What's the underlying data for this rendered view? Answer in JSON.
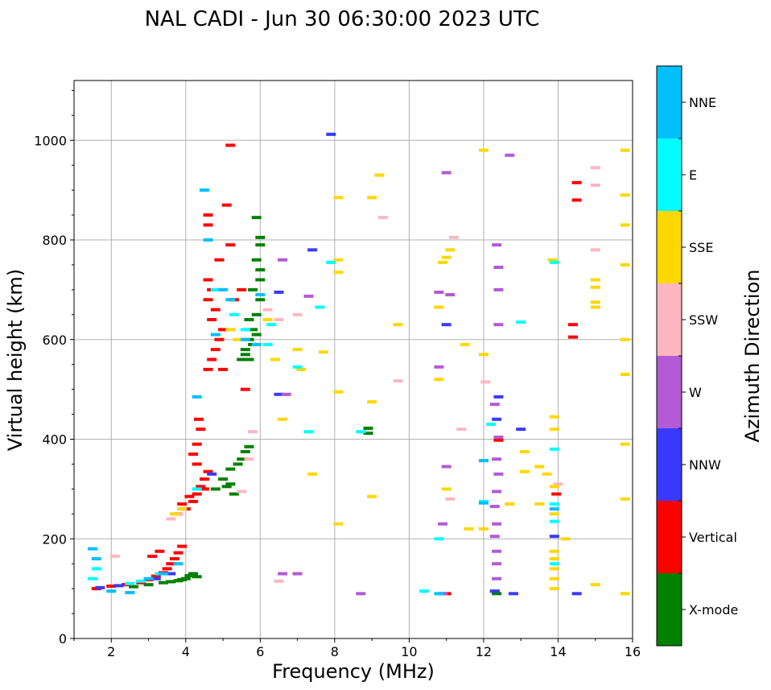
{
  "chart_data": {
    "type": "scatter",
    "title": "NAL CADI - Jun 30 06:30:00 2023 UTC",
    "xlabel": "Frequency (MHz)",
    "ylabel": "Virtual height (km)",
    "xlim": [
      1,
      16
    ],
    "ylim": [
      0,
      1120
    ],
    "xticks": [
      2,
      4,
      6,
      8,
      10,
      12,
      14,
      16
    ],
    "yticks": [
      0,
      200,
      400,
      600,
      800,
      1000
    ],
    "grid": true,
    "colorbar": {
      "label": "Azimuth Direction",
      "categories": [
        {
          "name": "X-mode",
          "color": "#008000"
        },
        {
          "name": "Vertical",
          "color": "#ff0000"
        },
        {
          "name": "NNW",
          "color": "#3a3aff"
        },
        {
          "name": "W",
          "color": "#b35ad6"
        },
        {
          "name": "SSW",
          "color": "#ffb6c1"
        },
        {
          "name": "SSE",
          "color": "#ffd700"
        },
        {
          "name": "E",
          "color": "#00ffff"
        },
        {
          "name": "NNE",
          "color": "#00bfff"
        }
      ]
    },
    "series": [
      {
        "name": "X-mode",
        "points": [
          [
            2.6,
            104
          ],
          [
            3.0,
            108
          ],
          [
            3.4,
            112
          ],
          [
            3.6,
            114
          ],
          [
            3.8,
            116
          ],
          [
            4.0,
            120
          ],
          [
            4.1,
            126
          ],
          [
            4.2,
            130
          ],
          [
            4.3,
            124
          ],
          [
            3.9,
            118
          ],
          [
            4.8,
            300
          ],
          [
            5.0,
            320
          ],
          [
            5.2,
            340
          ],
          [
            5.4,
            350
          ],
          [
            5.5,
            360
          ],
          [
            5.6,
            375
          ],
          [
            5.3,
            290
          ],
          [
            5.1,
            305
          ],
          [
            5.7,
            385
          ],
          [
            5.2,
            310
          ],
          [
            5.5,
            560
          ],
          [
            5.6,
            580
          ],
          [
            5.7,
            600
          ],
          [
            5.8,
            620
          ],
          [
            5.9,
            650
          ],
          [
            6.0,
            680
          ],
          [
            5.8,
            700
          ],
          [
            6.0,
            720
          ],
          [
            5.7,
            640
          ],
          [
            5.6,
            570
          ],
          [
            5.9,
            760
          ],
          [
            6.0,
            790
          ],
          [
            5.9,
            845
          ],
          [
            6.0,
            805
          ],
          [
            5.8,
            590
          ],
          [
            5.9,
            610
          ],
          [
            5.7,
            560
          ],
          [
            6.0,
            740
          ],
          [
            8.9,
            412
          ],
          [
            8.9,
            422
          ],
          [
            12.35,
            90
          ],
          [
            12.3,
            95
          ]
        ]
      },
      {
        "name": "Vertical",
        "points": [
          [
            1.6,
            100
          ],
          [
            2.0,
            105
          ],
          [
            2.4,
            108
          ],
          [
            2.8,
            112
          ],
          [
            3.0,
            118
          ],
          [
            3.2,
            125
          ],
          [
            3.4,
            132
          ],
          [
            3.5,
            140
          ],
          [
            3.6,
            150
          ],
          [
            3.7,
            160
          ],
          [
            3.8,
            172
          ],
          [
            3.9,
            185
          ],
          [
            3.3,
            175
          ],
          [
            3.1,
            165
          ],
          [
            3.8,
            250
          ],
          [
            4.0,
            260
          ],
          [
            4.2,
            275
          ],
          [
            4.3,
            290
          ],
          [
            4.4,
            305
          ],
          [
            4.5,
            320
          ],
          [
            4.6,
            335
          ],
          [
            4.3,
            350
          ],
          [
            4.2,
            370
          ],
          [
            4.3,
            390
          ],
          [
            4.4,
            420
          ],
          [
            4.35,
            440
          ],
          [
            3.9,
            270
          ],
          [
            4.1,
            285
          ],
          [
            4.5,
            300
          ],
          [
            4.6,
            540
          ],
          [
            4.7,
            560
          ],
          [
            4.8,
            580
          ],
          [
            4.9,
            600
          ],
          [
            5.0,
            620
          ],
          [
            4.7,
            640
          ],
          [
            4.8,
            660
          ],
          [
            4.6,
            680
          ],
          [
            4.7,
            700
          ],
          [
            4.6,
            720
          ],
          [
            4.9,
            760
          ],
          [
            5.2,
            790
          ],
          [
            4.6,
            830
          ],
          [
            4.6,
            850
          ],
          [
            5.1,
            870
          ],
          [
            5.2,
            990
          ],
          [
            5.5,
            700
          ],
          [
            5.3,
            680
          ],
          [
            5.0,
            540
          ],
          [
            5.6,
            500
          ],
          [
            14.4,
            605
          ],
          [
            14.4,
            630
          ],
          [
            14.5,
            880
          ],
          [
            14.5,
            915
          ],
          [
            13.95,
            290
          ],
          [
            12.4,
            398
          ],
          [
            11.0,
            90
          ]
        ]
      },
      {
        "name": "NNW",
        "points": [
          [
            1.7,
            102
          ],
          [
            2.2,
            106
          ],
          [
            3.2,
            120
          ],
          [
            3.6,
            130
          ],
          [
            4.7,
            330
          ],
          [
            6.5,
            490
          ],
          [
            6.5,
            695
          ],
          [
            7.4,
            780
          ],
          [
            7.9,
            1012
          ],
          [
            11.0,
            630
          ],
          [
            12.4,
            485
          ],
          [
            12.35,
            440
          ],
          [
            13.0,
            420
          ],
          [
            12.3,
            95
          ],
          [
            12.8,
            90
          ],
          [
            13.9,
            205
          ],
          [
            14.5,
            90
          ]
        ]
      },
      {
        "name": "W",
        "points": [
          [
            6.6,
            130
          ],
          [
            7.0,
            130
          ],
          [
            6.6,
            760
          ],
          [
            6.7,
            490
          ],
          [
            7.3,
            687
          ],
          [
            8.7,
            90
          ],
          [
            10.9,
            90
          ],
          [
            10.9,
            230
          ],
          [
            10.8,
            545
          ],
          [
            11.0,
            345
          ],
          [
            11.1,
            690
          ],
          [
            10.8,
            695
          ],
          [
            11.0,
            935
          ],
          [
            12.35,
            120
          ],
          [
            12.35,
            150
          ],
          [
            12.35,
            175
          ],
          [
            12.3,
            205
          ],
          [
            12.35,
            230
          ],
          [
            12.3,
            265
          ],
          [
            12.35,
            295
          ],
          [
            12.4,
            330
          ],
          [
            12.35,
            360
          ],
          [
            12.4,
            404
          ],
          [
            12.3,
            470
          ],
          [
            12.4,
            630
          ],
          [
            12.4,
            700
          ],
          [
            12.4,
            745
          ],
          [
            12.35,
            790
          ],
          [
            12.7,
            970
          ]
        ]
      },
      {
        "name": "SSW",
        "points": [
          [
            2.1,
            165
          ],
          [
            3.6,
            240
          ],
          [
            3.8,
            250
          ],
          [
            5.5,
            295
          ],
          [
            5.7,
            360
          ],
          [
            5.8,
            415
          ],
          [
            6.2,
            660
          ],
          [
            6.5,
            640
          ],
          [
            6.5,
            115
          ],
          [
            7.0,
            650
          ],
          [
            9.3,
            845
          ],
          [
            9.7,
            517
          ],
          [
            11.2,
            805
          ],
          [
            11.4,
            420
          ],
          [
            11.1,
            280
          ],
          [
            14.0,
            310
          ],
          [
            15.0,
            780
          ],
          [
            15.0,
            910
          ],
          [
            15.0,
            945
          ],
          [
            12.05,
            515
          ]
        ]
      },
      {
        "name": "SSE",
        "points": [
          [
            3.7,
            250
          ],
          [
            3.9,
            260
          ],
          [
            5.2,
            620
          ],
          [
            5.4,
            600
          ],
          [
            6.2,
            640
          ],
          [
            6.4,
            560
          ],
          [
            6.6,
            440
          ],
          [
            7.0,
            580
          ],
          [
            7.1,
            540
          ],
          [
            7.4,
            330
          ],
          [
            7.7,
            575
          ],
          [
            8.1,
            230
          ],
          [
            8.1,
            495
          ],
          [
            8.1,
            735
          ],
          [
            8.1,
            760
          ],
          [
            8.1,
            885
          ],
          [
            9.0,
            285
          ],
          [
            9.0,
            475
          ],
          [
            9.0,
            885
          ],
          [
            9.2,
            930
          ],
          [
            9.7,
            630
          ],
          [
            10.8,
            520
          ],
          [
            10.8,
            665
          ],
          [
            10.9,
            755
          ],
          [
            11.0,
            300
          ],
          [
            11.0,
            765
          ],
          [
            11.1,
            780
          ],
          [
            11.5,
            590
          ],
          [
            11.6,
            220
          ],
          [
            12.0,
            220
          ],
          [
            12.0,
            570
          ],
          [
            12.0,
            980
          ],
          [
            12.7,
            270
          ],
          [
            13.1,
            335
          ],
          [
            13.1,
            375
          ],
          [
            13.5,
            270
          ],
          [
            13.5,
            345
          ],
          [
            13.7,
            330
          ],
          [
            13.9,
            100
          ],
          [
            13.9,
            120
          ],
          [
            13.9,
            140
          ],
          [
            13.9,
            160
          ],
          [
            13.9,
            175
          ],
          [
            13.9,
            250
          ],
          [
            13.9,
            305
          ],
          [
            13.9,
            420
          ],
          [
            13.9,
            445
          ],
          [
            13.85,
            760
          ],
          [
            14.2,
            200
          ],
          [
            15.0,
            108
          ],
          [
            15.0,
            665
          ],
          [
            15.0,
            675
          ],
          [
            15.0,
            705
          ],
          [
            15.0,
            720
          ],
          [
            15.8,
            90
          ],
          [
            15.8,
            280
          ],
          [
            15.8,
            390
          ],
          [
            15.8,
            530
          ],
          [
            15.8,
            600
          ],
          [
            15.8,
            750
          ],
          [
            15.8,
            830
          ],
          [
            15.8,
            890
          ],
          [
            15.8,
            980
          ]
        ]
      },
      {
        "name": "E",
        "points": [
          [
            1.5,
            120
          ],
          [
            1.6,
            140
          ],
          [
            2.5,
            110
          ],
          [
            2.8,
            115
          ],
          [
            3.3,
            130
          ],
          [
            4.3,
            300
          ],
          [
            4.8,
            700
          ],
          [
            5.3,
            650
          ],
          [
            5.6,
            620
          ],
          [
            6.2,
            590
          ],
          [
            6.3,
            630
          ],
          [
            7.0,
            545
          ],
          [
            7.3,
            415
          ],
          [
            7.6,
            665
          ],
          [
            7.9,
            755
          ],
          [
            8.7,
            415
          ],
          [
            10.4,
            95
          ],
          [
            10.8,
            200
          ],
          [
            12.0,
            275
          ],
          [
            12.2,
            430
          ],
          [
            13.0,
            635
          ],
          [
            13.9,
            150
          ],
          [
            13.9,
            235
          ],
          [
            13.9,
            270
          ],
          [
            13.9,
            380
          ],
          [
            13.9,
            755
          ]
        ]
      },
      {
        "name": "NNE",
        "points": [
          [
            1.5,
            180
          ],
          [
            1.6,
            160
          ],
          [
            2.0,
            95
          ],
          [
            2.5,
            92
          ],
          [
            3.0,
            120
          ],
          [
            3.4,
            130
          ],
          [
            3.8,
            150
          ],
          [
            4.3,
            485
          ],
          [
            4.5,
            900
          ],
          [
            4.6,
            800
          ],
          [
            4.8,
            610
          ],
          [
            5.0,
            700
          ],
          [
            5.2,
            680
          ],
          [
            5.6,
            600
          ],
          [
            5.9,
            590
          ],
          [
            6.0,
            690
          ],
          [
            12.0,
            357
          ],
          [
            12.0,
            272
          ],
          [
            10.8,
            90
          ],
          [
            13.9,
            260
          ]
        ]
      }
    ]
  }
}
